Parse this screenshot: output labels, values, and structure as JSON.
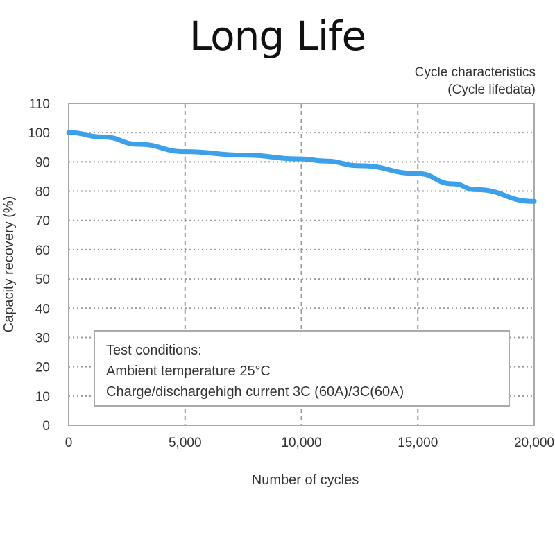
{
  "title": "Long Life",
  "chart_data": {
    "type": "line",
    "title": "Cycle characteristics",
    "subtitle": "(Cycle lifedata)",
    "xlabel": "Number of cycles",
    "ylabel": "Capacity recovery (%)",
    "xlim": [
      0,
      20000
    ],
    "ylim": [
      0,
      110
    ],
    "x_ticks": [
      "0",
      "5,000",
      "10,000",
      "15,000",
      "20,000"
    ],
    "y_ticks": [
      "0",
      "10",
      "20",
      "30",
      "40",
      "50",
      "60",
      "70",
      "80",
      "90",
      "100",
      "110"
    ],
    "grid": true,
    "series": [
      {
        "color": "#3da0ea",
        "x": [
          0,
          1500,
          3000,
          5000,
          7500,
          10000,
          11000,
          12500,
          15000,
          16500,
          17500,
          20000
        ],
        "y": [
          100,
          98.5,
          96,
          93.5,
          92.3,
          91,
          90.3,
          88.7,
          86,
          82.5,
          80.5,
          76.5
        ]
      }
    ],
    "annotation": {
      "heading": "Test conditions:",
      "lines": [
        "Ambient temperature  25°C",
        "Charge/dischargehigh current 3C (60A)/3C(60A)"
      ]
    }
  }
}
